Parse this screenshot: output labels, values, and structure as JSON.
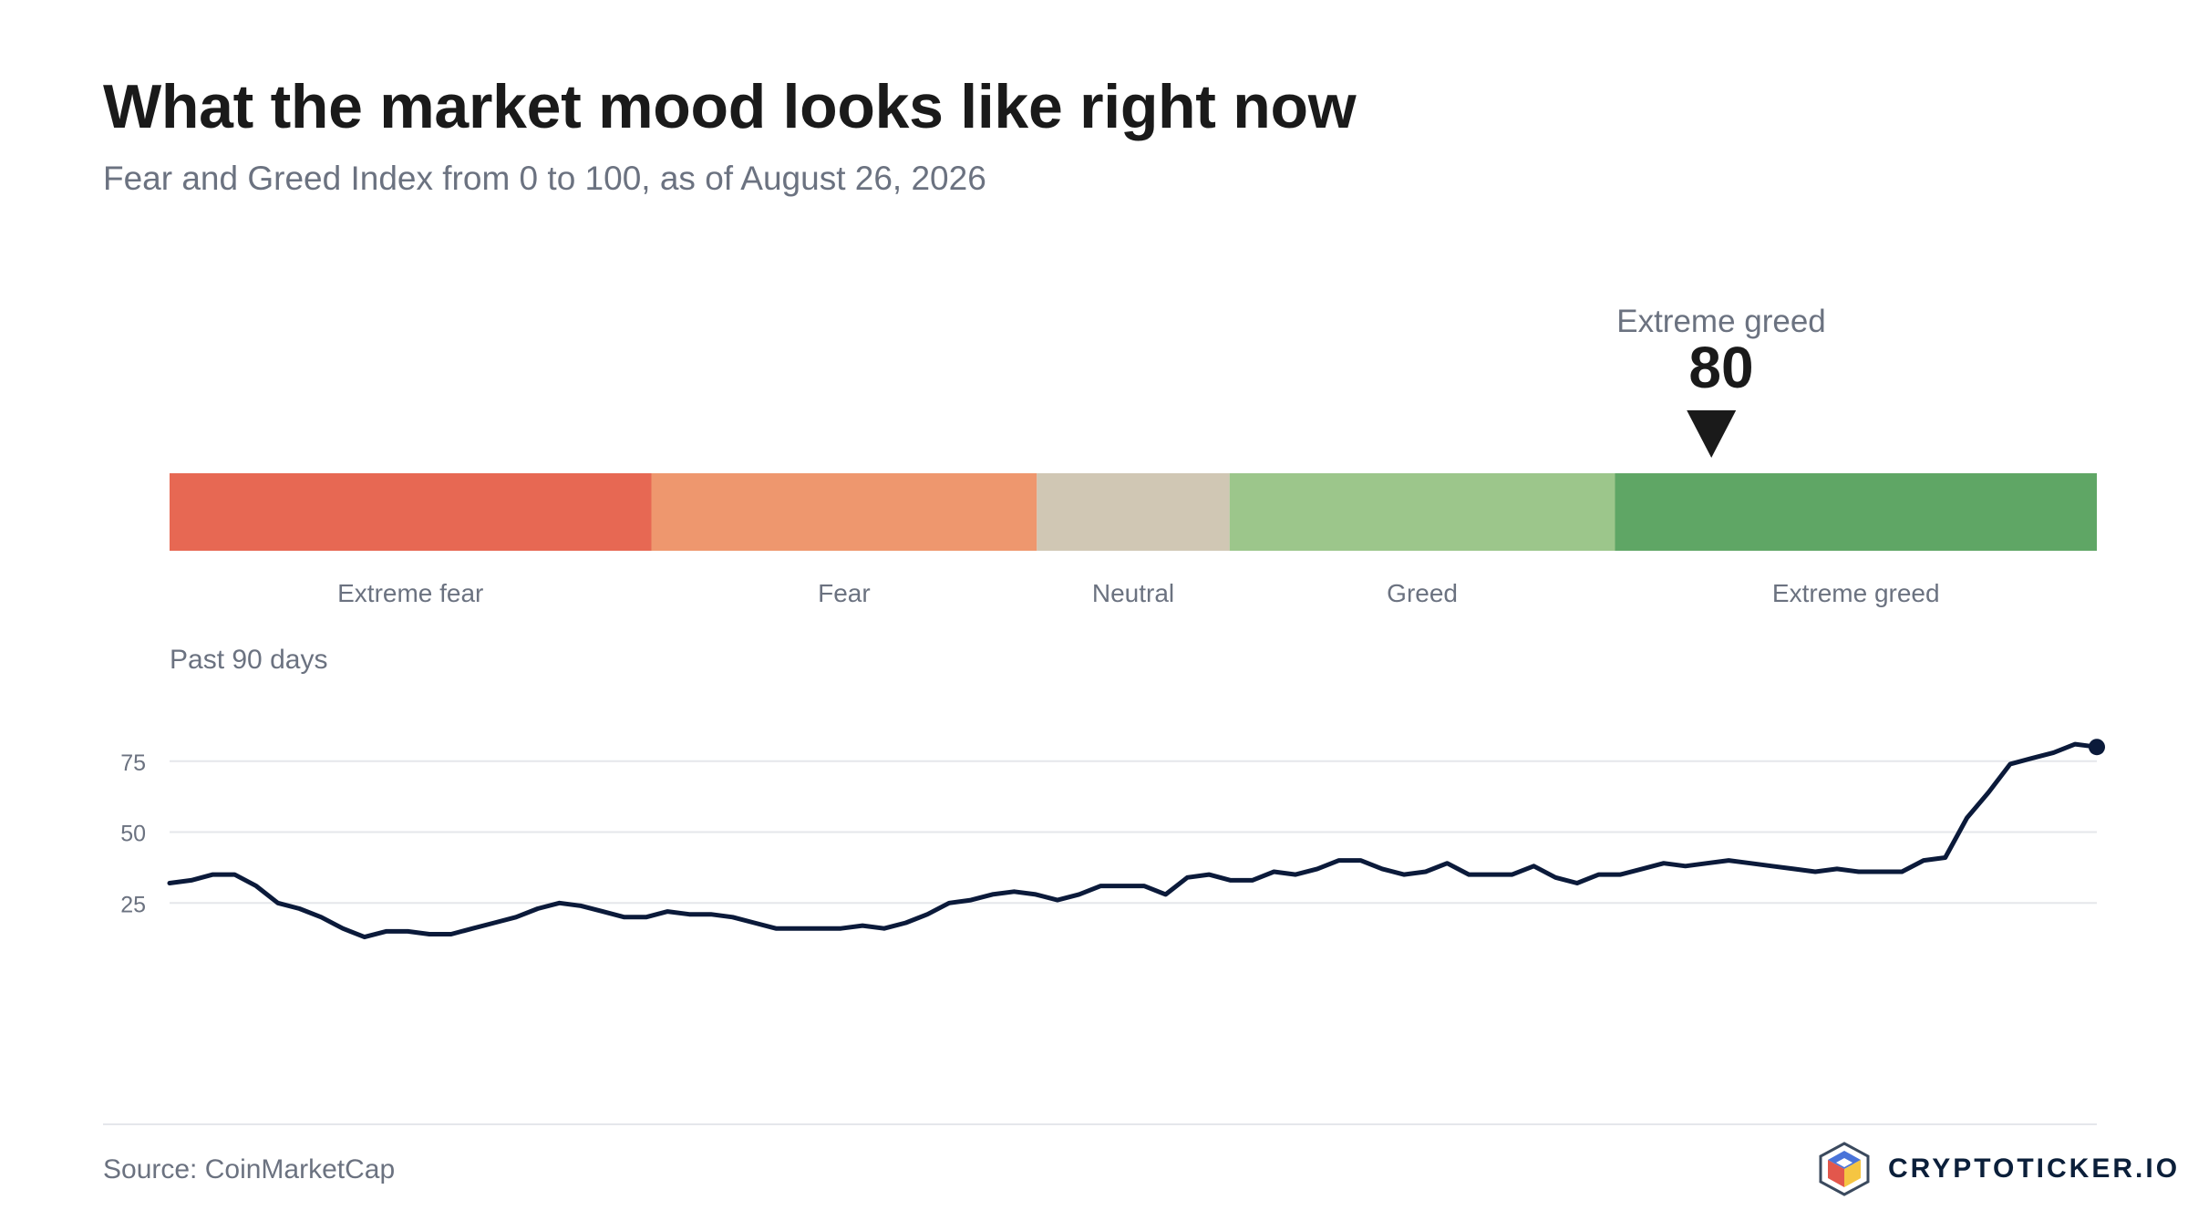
{
  "header": {
    "title": "What the market mood looks like right now",
    "subtitle": "Fear and Greed Index from 0 to 100, as of August 26, 2026"
  },
  "current": {
    "label": "Extreme greed",
    "value": 80
  },
  "footer": {
    "source": "Source: CoinMarketCap",
    "brand": "CRYPTOTICKER.IO"
  },
  "chart_data": [
    {
      "type": "bar",
      "orientation": "horizontal",
      "range": [
        0,
        100
      ],
      "segments": [
        {
          "label": "Extreme fear",
          "from": 0,
          "to": 25,
          "color": "#e76853"
        },
        {
          "label": "Fear",
          "from": 25,
          "to": 45,
          "color": "#ee976e"
        },
        {
          "label": "Neutral",
          "from": 45,
          "to": 55,
          "color": "#d0c7b4"
        },
        {
          "label": "Greed",
          "from": 55,
          "to": 75,
          "color": "#9cc68b"
        },
        {
          "label": "Extreme greed",
          "from": 75,
          "to": 100,
          "color": "#5fa665"
        }
      ],
      "marker": {
        "value": 80,
        "label": "Extreme greed"
      }
    },
    {
      "type": "line",
      "title": "Past 90 days",
      "line_color": "#0b1a3a",
      "ylim": [
        0,
        100
      ],
      "yticks": [
        25,
        50,
        75
      ],
      "grid": true,
      "values": [
        32,
        33,
        35,
        35,
        31,
        25,
        23,
        20,
        16,
        13,
        15,
        15,
        14,
        14,
        16,
        18,
        20,
        23,
        25,
        24,
        22,
        20,
        20,
        22,
        21,
        21,
        20,
        18,
        16,
        16,
        16,
        16,
        17,
        16,
        18,
        21,
        25,
        26,
        28,
        29,
        28,
        26,
        28,
        31,
        31,
        31,
        28,
        34,
        35,
        33,
        33,
        36,
        35,
        37,
        40,
        40,
        37,
        35,
        36,
        39,
        35,
        35,
        35,
        38,
        34,
        32,
        35,
        35,
        37,
        39,
        38,
        39,
        40,
        39,
        38,
        37,
        36,
        37,
        36,
        36,
        36,
        40,
        41,
        55,
        64,
        74,
        76,
        78,
        81,
        80
      ]
    }
  ]
}
